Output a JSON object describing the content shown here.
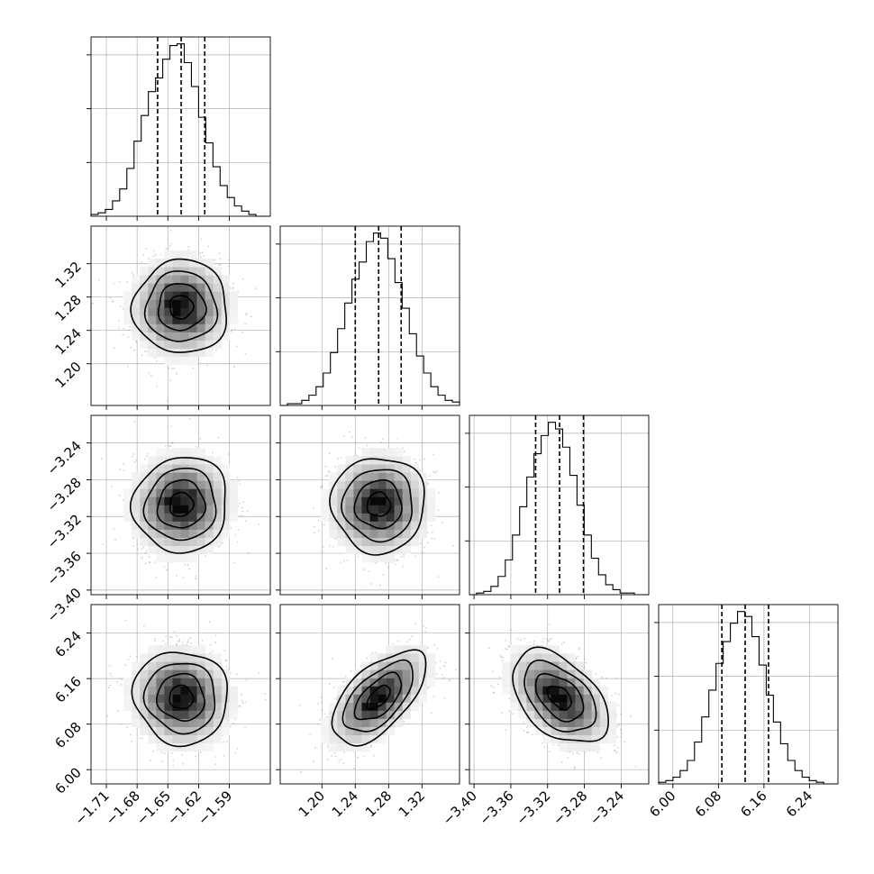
{
  "chart_data": {
    "type": "corner",
    "colors": {
      "line": "#000000",
      "grid": "#b0b0b0",
      "scatter": "#9a9a9a",
      "density_dark": "#000000",
      "density_light": "#ffffff"
    },
    "grid": true,
    "parameters": [
      {
        "index": 0,
        "median": -1.637,
        "q16": -1.66,
        "q84": -1.614,
        "sigma": 0.023,
        "range": [
          -1.725,
          -1.55
        ],
        "ticks": [
          -1.71,
          -1.68,
          -1.65,
          -1.62,
          -1.59
        ],
        "tick_labels": [
          "−1.71",
          "−1.68",
          "−1.65",
          "−1.62",
          "−1.59"
        ]
      },
      {
        "index": 1,
        "median": 1.268,
        "q16": 1.24,
        "q84": 1.295,
        "sigma": 0.028,
        "range": [
          1.15,
          1.365
        ],
        "ticks": [
          1.2,
          1.24,
          1.28,
          1.32
        ],
        "tick_labels": [
          "1.20",
          "1.24",
          "1.28",
          "1.32"
        ]
      },
      {
        "index": 2,
        "median": -3.307,
        "q16": -3.333,
        "q84": -3.281,
        "sigma": 0.026,
        "range": [
          -3.405,
          -3.21
        ],
        "ticks": [
          -3.4,
          -3.36,
          -3.32,
          -3.28,
          -3.24
        ],
        "tick_labels": [
          "−3.40",
          "−3.36",
          "−3.32",
          "−3.28",
          "−3.24"
        ]
      },
      {
        "index": 3,
        "median": 6.127,
        "q16": 6.086,
        "q84": 6.168,
        "sigma": 0.041,
        "range": [
          5.975,
          6.29
        ],
        "ticks": [
          6.0,
          6.08,
          6.16,
          6.24
        ],
        "tick_labels": [
          "6.00",
          "6.08",
          "6.16",
          "6.24"
        ]
      }
    ],
    "correlations": [
      {
        "i": 1,
        "j": 0,
        "rho": 0.0
      },
      {
        "i": 2,
        "j": 0,
        "rho": 0.05
      },
      {
        "i": 2,
        "j": 1,
        "rho": 0.0
      },
      {
        "i": 3,
        "j": 0,
        "rho": -0.05
      },
      {
        "i": 3,
        "j": 1,
        "rho": 0.6
      },
      {
        "i": 3,
        "j": 2,
        "rho": -0.45
      }
    ],
    "histograms": [
      {
        "param": 0,
        "counts": [
          1,
          2,
          4,
          9,
          16,
          28,
          44,
          59,
          73,
          81,
          92,
          100,
          101,
          90,
          76,
          58,
          43,
          29,
          18,
          11,
          6,
          3,
          1,
          0,
          0
        ]
      },
      {
        "param": 1,
        "counts": [
          0,
          1,
          1,
          3,
          6,
          11,
          19,
          31,
          45,
          60,
          74,
          84,
          96,
          101,
          98,
          86,
          72,
          57,
          42,
          29,
          19,
          11,
          6,
          3,
          2
        ]
      },
      {
        "param": 2,
        "counts": [
          0,
          1,
          2,
          5,
          11,
          21,
          36,
          53,
          71,
          85,
          96,
          104,
          100,
          89,
          72,
          54,
          36,
          22,
          12,
          6,
          3,
          1,
          1,
          0,
          0
        ]
      },
      {
        "param": 3,
        "counts": [
          1,
          2,
          4,
          8,
          14,
          25,
          40,
          56,
          72,
          85,
          96,
          103,
          100,
          88,
          71,
          53,
          37,
          24,
          14,
          8,
          4,
          2,
          1,
          0,
          0
        ]
      }
    ]
  }
}
